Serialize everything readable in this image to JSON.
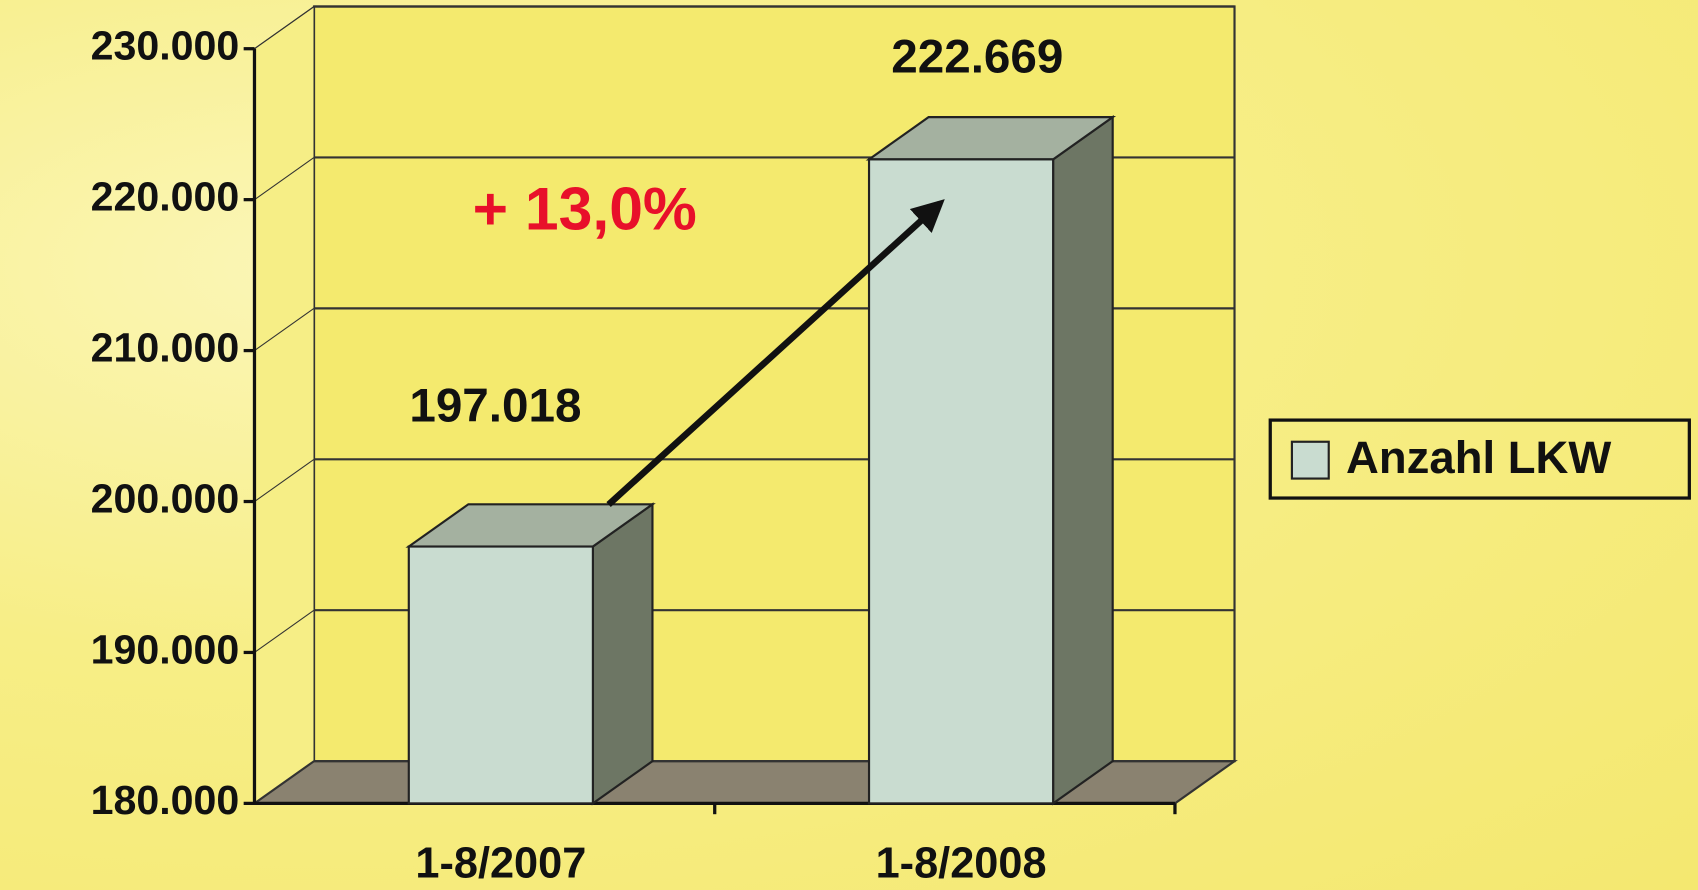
{
  "chart_data": {
    "type": "bar3d",
    "categories": [
      "1-8/2007",
      "1-8/2008"
    ],
    "series": [
      {
        "name": "Anzahl LKW",
        "color": "#c9dcd0",
        "values": [
          197018,
          222669
        ],
        "value_labels": [
          "197.018",
          "222.669"
        ]
      }
    ],
    "ylim": [
      180000,
      230000
    ],
    "yticks": [
      {
        "value": 180000,
        "label": "180.000"
      },
      {
        "value": 190000,
        "label": "190.000"
      },
      {
        "value": 200000,
        "label": "200.000"
      },
      {
        "value": 210000,
        "label": "210.000"
      },
      {
        "value": 220000,
        "label": "220.000"
      },
      {
        "value": 230000,
        "label": "230.000"
      }
    ],
    "grid": true,
    "legend": "right",
    "annotation": "+ 13,0%"
  }
}
